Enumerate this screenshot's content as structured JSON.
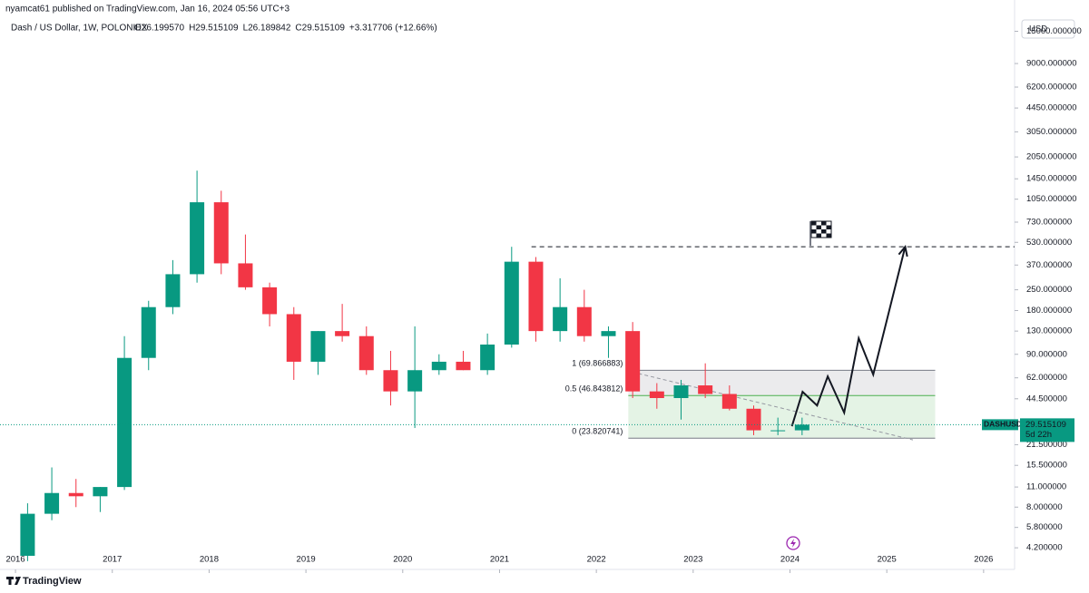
{
  "chart_data": {
    "type": "candlestick",
    "published": "nyamcat61 published on TradingView.com, Jan 16, 2024 05:56 UTC+3",
    "symbol_title": "Dash / US Dollar, 1W, POLONIEX",
    "ohlc_readout": [
      "O26.199570",
      "H29.515109",
      "L26.189842",
      "C29.515109",
      "+3.317706 (+12.66%)"
    ],
    "currency_button": "USD",
    "log_scale": true,
    "up_color": "#089981",
    "down_color": "#f23645",
    "x": [
      2016.0,
      2016.25,
      2016.5,
      2016.75,
      2017.0,
      2017.25,
      2017.5,
      2017.75,
      2018.0,
      2018.25,
      2018.5,
      2018.75,
      2019.0,
      2019.25,
      2019.5,
      2019.75,
      2020.0,
      2020.25,
      2020.5,
      2020.75,
      2021.0,
      2021.25,
      2021.5,
      2021.75,
      2022.0,
      2022.25,
      2022.5,
      2022.75,
      2023.0,
      2023.25,
      2023.5,
      2023.75,
      2024.0
    ],
    "open": [
      3.7,
      7.2,
      10,
      9.5,
      11,
      85,
      190,
      320,
      1000,
      380,
      260,
      170,
      80,
      130,
      120,
      70,
      50,
      70,
      80,
      70,
      105,
      390,
      130,
      190,
      120,
      130,
      50,
      45,
      55,
      48,
      38,
      27,
      27
    ],
    "high": [
      8.5,
      15,
      12.5,
      11,
      120,
      210,
      400,
      1650,
      1200,
      600,
      280,
      190,
      130,
      200,
      140,
      95,
      140,
      90,
      95,
      125,
      494,
      420,
      300,
      250,
      140,
      150,
      57,
      60,
      78,
      55,
      40,
      33,
      33
    ],
    "low": [
      3.4,
      6.5,
      8,
      7.4,
      10.5,
      70,
      170,
      280,
      320,
      250,
      140,
      60,
      65,
      110,
      65,
      40,
      28,
      65,
      70,
      65,
      100,
      110,
      110,
      110,
      85,
      45,
      38,
      32,
      45,
      37,
      25,
      25,
      25
    ],
    "close": [
      7.2,
      10,
      9.5,
      11,
      85,
      190,
      320,
      1000,
      380,
      260,
      170,
      80,
      130,
      120,
      70,
      50,
      70,
      80,
      70,
      105,
      390,
      130,
      190,
      120,
      130,
      50,
      45,
      55,
      48,
      38,
      27,
      27,
      29.515109
    ],
    "last_price": {
      "symbol": "DASHUSD",
      "value": 29.515109,
      "countdown": "5d 22h"
    },
    "fib": {
      "start": 2022.33,
      "end": 2025.5,
      "levels": [
        {
          "price": 69.866883,
          "label": "1 (69.866883)",
          "color": "#787b86"
        },
        {
          "price": 46.843812,
          "label": "0.5 (46.843812)",
          "color": "#4caf50"
        },
        {
          "price": 23.820741,
          "label": "0 (23.820741)",
          "color": "#787b86"
        }
      ]
    },
    "resistance": {
      "x": [
        2021.33,
        2026.32
      ],
      "price": 494
    },
    "trendline": {
      "x": [
        2022.37,
        2025.27
      ],
      "y": [
        68,
        23.2
      ]
    },
    "projection": {
      "x": [
        2024.02,
        2024.13,
        2024.28,
        2024.39,
        2024.56,
        2024.71,
        2024.86,
        2025.19
      ],
      "y": [
        28.8,
        49.7,
        40,
        63.4,
        35.7,
        116,
        65.3,
        494
      ]
    },
    "xlim": [
      2015.84,
      2026.32
    ],
    "xticks": [
      2016,
      2017,
      2018,
      2019,
      2020,
      2021,
      2022,
      2023,
      2024,
      2025,
      2026
    ],
    "ylim": [
      3.25,
      17950
    ],
    "yticks": [
      {
        "value": 15000,
        "label": "15000.000000"
      },
      {
        "value": 9000,
        "label": "9000.000000"
      },
      {
        "value": 6200,
        "label": "6200.000000"
      },
      {
        "value": 4450,
        "label": "4450.000000"
      },
      {
        "value": 3050,
        "label": "3050.000000"
      },
      {
        "value": 2050,
        "label": "2050.000000"
      },
      {
        "value": 1450,
        "label": "1450.000000"
      },
      {
        "value": 1050,
        "label": "1050.000000"
      },
      {
        "value": 730,
        "label": "730.000000"
      },
      {
        "value": 530,
        "label": "530.000000"
      },
      {
        "value": 370,
        "label": "370.000000"
      },
      {
        "value": 250,
        "label": "250.000000"
      },
      {
        "value": 180,
        "label": "180.000000"
      },
      {
        "value": 130,
        "label": "130.000000"
      },
      {
        "value": 90,
        "label": "90.000000"
      },
      {
        "value": 62,
        "label": "62.000000"
      },
      {
        "value": 44.5,
        "label": "44.500000"
      },
      {
        "value": 21.5,
        "label": "21.500000"
      },
      {
        "value": 15.5,
        "label": "15.500000"
      },
      {
        "value": 11,
        "label": "11.000000"
      },
      {
        "value": 8,
        "label": "8.000000"
      },
      {
        "value": 5.8,
        "label": "5.800000"
      },
      {
        "value": 4.2,
        "label": "4.200000"
      }
    ],
    "brand": "TradingView"
  }
}
